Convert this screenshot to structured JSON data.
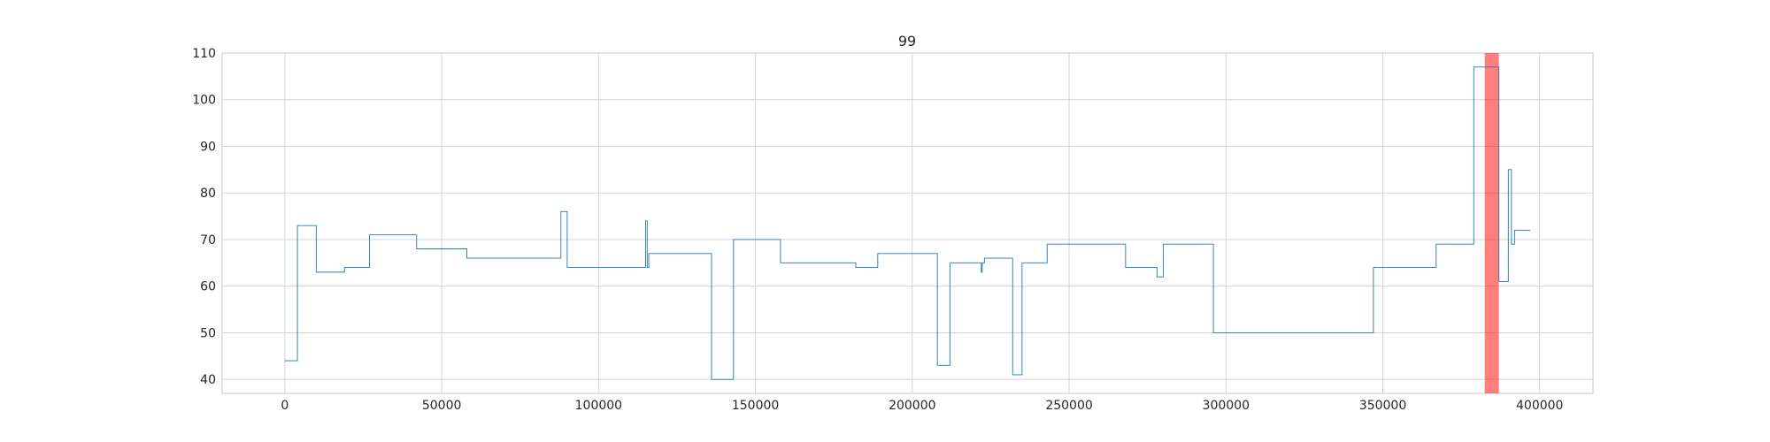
{
  "chart_data": {
    "type": "line",
    "title": "99",
    "xlabel": "",
    "ylabel": "",
    "xlim": [
      -20000,
      417000
    ],
    "ylim": [
      37,
      110
    ],
    "grid": true,
    "x_ticks": [
      0,
      50000,
      100000,
      150000,
      200000,
      250000,
      300000,
      350000,
      400000
    ],
    "y_ticks": [
      40,
      50,
      60,
      70,
      80,
      90,
      100,
      110
    ],
    "line_color": "#1f77b4",
    "highlight": {
      "x_start": 382500,
      "x_end": 387000,
      "color": "#ff0000"
    },
    "series": [
      {
        "step": true,
        "x": [
          0,
          4000,
          10000,
          19000,
          27000,
          42000,
          58000,
          88000,
          90000,
          115000,
          115500,
          116000,
          136000,
          143000,
          158000,
          182000,
          189000,
          208000,
          212000,
          222000,
          222300,
          223000,
          232000,
          235000,
          243000,
          268000,
          278000,
          280000,
          296000,
          347000,
          367000,
          379000,
          387000,
          390000,
          391000,
          392000,
          397000
        ],
        "y": [
          44,
          73,
          63,
          64,
          71,
          68,
          66,
          76,
          64,
          74,
          64,
          67,
          40,
          70,
          65,
          64,
          67,
          43,
          65,
          63,
          65,
          66,
          41,
          65,
          69,
          64,
          62,
          69,
          50,
          64,
          69,
          107,
          61,
          85,
          69,
          72,
          72
        ]
      }
    ]
  }
}
